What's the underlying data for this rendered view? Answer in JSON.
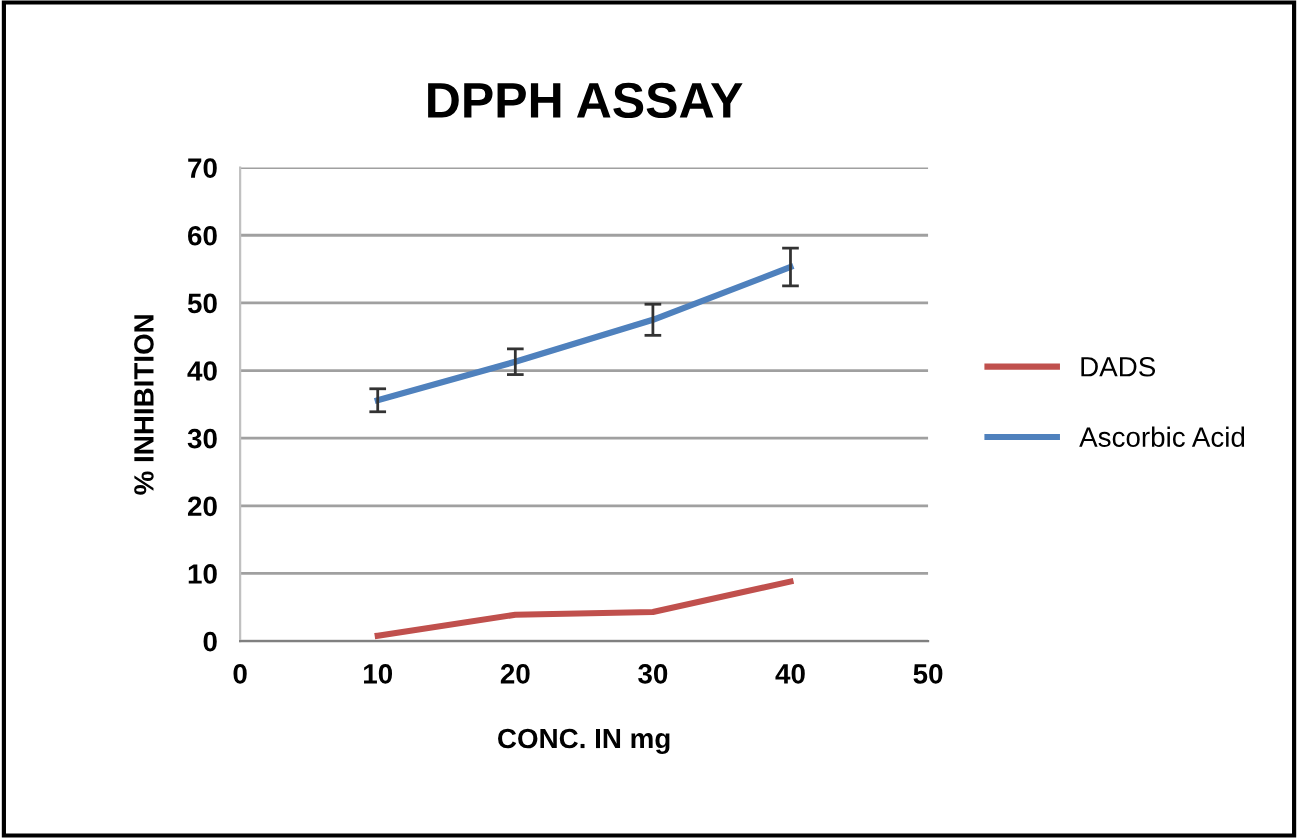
{
  "chart_data": {
    "type": "line",
    "title": "DPPH ASSAY",
    "xlabel": "CONC. IN mg",
    "ylabel": "% INHIBITION",
    "x": [
      10,
      20,
      30,
      40
    ],
    "series": [
      {
        "name": "DADS",
        "color": "#c0504d",
        "values": [
          0.8,
          3.9,
          4.3,
          8.8
        ]
      },
      {
        "name": "Ascorbic Acid",
        "color": "#4f81bd",
        "values": [
          35.6,
          41.3,
          47.5,
          55.3
        ],
        "errors": [
          1.7,
          1.9,
          2.3,
          2.8
        ]
      }
    ],
    "xlim": [
      0,
      50
    ],
    "xticks": [
      0,
      10,
      20,
      30,
      40,
      50
    ],
    "ylim": [
      0,
      70
    ],
    "yticks": [
      0,
      10,
      20,
      30,
      40,
      50,
      60,
      70
    ],
    "grid": "y",
    "legend": "right",
    "marker": "none",
    "line_style": "solid"
  }
}
